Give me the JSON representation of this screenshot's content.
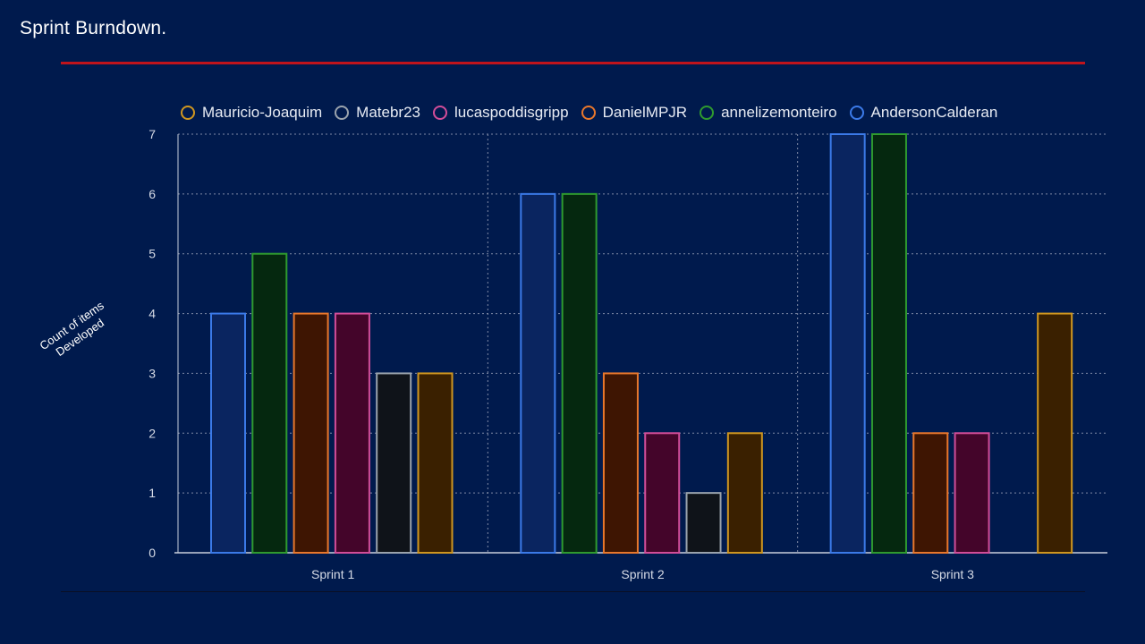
{
  "slide": {
    "title": "Sprint Burndown."
  },
  "chart_data": {
    "type": "bar",
    "title": "",
    "xlabel": "",
    "ylabel": "Count of items Developed",
    "ylim": [
      0,
      7
    ],
    "yticks": [
      0,
      1,
      2,
      3,
      4,
      5,
      6,
      7
    ],
    "grid": true,
    "legend_position": "top",
    "categories": [
      "Sprint 1",
      "Sprint 2",
      "Sprint 3"
    ],
    "legend_order": [
      "Mauricio-Joaquim",
      "Matebr23",
      "lucaspoddisgripp",
      "DanielMPJR",
      "annelizemonteiro",
      "AndersonCalderan"
    ],
    "bar_order": [
      "AndersonCalderan",
      "annelizemonteiro",
      "DanielMPJR",
      "lucaspoddisgripp",
      "Matebr23",
      "Mauricio-Joaquim"
    ],
    "series": [
      {
        "name": "AndersonCalderan",
        "values": [
          4,
          6,
          7
        ],
        "stroke": "#3b7ae8",
        "fill": "#0a2560"
      },
      {
        "name": "annelizemonteiro",
        "values": [
          5,
          6,
          7
        ],
        "stroke": "#2f9a2f",
        "fill": "#05280f"
      },
      {
        "name": "DanielMPJR",
        "values": [
          4,
          3,
          2
        ],
        "stroke": "#e8772c",
        "fill": "#3e1502"
      },
      {
        "name": "lucaspoddisgripp",
        "values": [
          4,
          2,
          2
        ],
        "stroke": "#d24d99",
        "fill": "#44052a"
      },
      {
        "name": "Matebr23",
        "values": [
          3,
          1,
          null
        ],
        "stroke": "#9aa3ad",
        "fill": "#0f1319"
      },
      {
        "name": "Mauricio-Joaquim",
        "values": [
          3,
          2,
          4
        ],
        "stroke": "#cf9620",
        "fill": "#3a2000"
      }
    ]
  }
}
